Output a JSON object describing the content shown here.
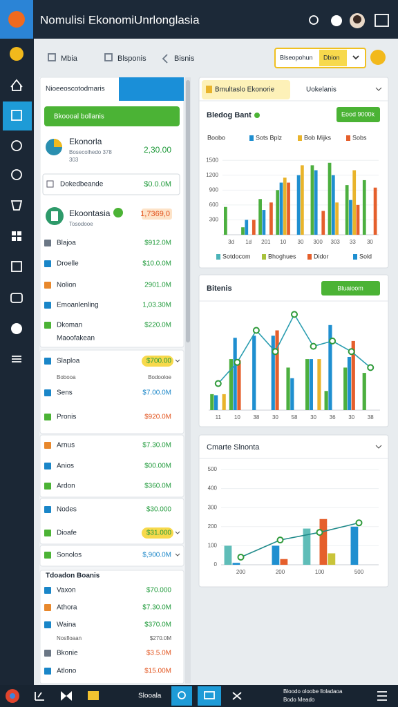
{
  "header": {
    "title": "Nomulisi EkonomiUnrlonglasia"
  },
  "toolbar": {
    "tabs": [
      "Mbia",
      "Blsponis",
      "Bisnis"
    ],
    "account": [
      "Blseopohun",
      "Dbion"
    ]
  },
  "left_panel": {
    "title": "Nioeeoscotodmaris",
    "button": "Bkoooal bollanis",
    "feature": {
      "name": "Ekonorla",
      "sub": "Bosecolhedo 378",
      "sub2": "303",
      "value": "2,30.00"
    },
    "box": {
      "name": "Dokedbeande",
      "value": "$0.0.0M"
    },
    "feature2": {
      "name": "Ekoontasia",
      "sub": "Tosodooe",
      "value": "1,7369,0"
    },
    "cards": [
      [
        {
          "name": "Blajoa",
          "value": "$912.0M"
        },
        {
          "name": "Droelle",
          "value": "$10.0.0M"
        },
        {
          "name": "Nolion",
          "value": "2901.0M"
        },
        {
          "name": "Emoanlenling",
          "value": "1,03.30M"
        },
        {
          "name": "Dkoman",
          "value": "$220.0M"
        },
        {
          "name": "Maoofakean"
        }
      ],
      [
        {
          "name": "Slaploa",
          "value": "$700.00",
          "pill": "#f7d94c",
          "chevron": true
        },
        {
          "name": "Bobooa",
          "value": "Bodooloe",
          "small": true
        },
        {
          "name": "Sens",
          "value": "$7.00.0M",
          "color": "#1a86c8"
        },
        {
          "name": "Pronis",
          "value": "$920.0M",
          "color": "#e2531d"
        }
      ],
      [
        {
          "name": "Arnus",
          "value": "$7.30.0M"
        },
        {
          "name": "Anios",
          "value": "$00.00M"
        },
        {
          "name": "Ardon",
          "value": "$360.0M"
        }
      ],
      [
        {
          "name": "Nodes",
          "value": "$30.000"
        },
        {
          "name": "Dioafe",
          "value": "$31.000",
          "pill": "#f7d94c",
          "chevron": true
        }
      ],
      [
        {
          "name": "Sonolos",
          "value": "$,900.0M",
          "color": "#1a86c8",
          "chevron": true
        }
      ]
    ],
    "section_title": "Tdoadon Boanis",
    "section_rows": [
      {
        "name": "Vaxon",
        "value": "$70.000"
      },
      {
        "name": "Athora",
        "value": "$7.30.0M"
      },
      {
        "name": "Waina",
        "value": "$370.0M"
      },
      {
        "name": "Nosfloaan",
        "value": "$270.0M",
        "small": true
      },
      {
        "name": "Bkonie",
        "value": "$3.5.0M",
        "color": "#e2531d"
      },
      {
        "name": "Atlono",
        "value": "$15.00M",
        "color": "#e2531d"
      }
    ]
  },
  "panels": [
    {
      "tabs": [
        "Bmultaslo Ekonorie",
        "Uokelanis"
      ],
      "title": "Bledog Bant",
      "button": "Eood 9000k",
      "chart": {
        "type": "bar",
        "grid": true,
        "ylim": [
          0,
          1600
        ],
        "yticks": [
          300,
          600,
          900,
          1200,
          1500
        ],
        "categories": [
          "3d",
          "1d",
          "201",
          "10",
          "30",
          "300",
          "303",
          "33",
          "30"
        ],
        "series": [
          {
            "name": "Boobo",
            "color": "#4caf3f",
            "values": [
              560,
              150,
              720,
              900,
              null,
              1400,
              1450,
              1000,
              1100
            ]
          },
          {
            "name": "Sots Bplz",
            "color": "#1f8fd0",
            "values": [
              null,
              300,
              500,
              1050,
              1200,
              1300,
              1200,
              700,
              null
            ]
          },
          {
            "name": "Bob Mijks",
            "color": "#e9b42b",
            "values": [
              null,
              null,
              null,
              1150,
              1400,
              null,
              650,
              1300,
              null
            ]
          },
          {
            "name": "Sobs",
            "color": "#e55f2c",
            "values": [
              null,
              300,
              650,
              1050,
              null,
              480,
              null,
              600,
              950
            ]
          }
        ],
        "legend2": [
          {
            "label": "Sotdocom",
            "color": "#4bb3b8"
          },
          {
            "label": "Bhoghues",
            "color": "#a8c23c"
          },
          {
            "label": "Didor",
            "color": "#e55f2c"
          },
          {
            "label": "Sold",
            "color": "#1f8fd0"
          }
        ]
      }
    },
    {
      "title": "Bitenis",
      "button": "Bluaioom",
      "chart": {
        "type": "bar",
        "grid": false,
        "ylim": [
          0,
          100
        ],
        "categories": [
          "11",
          "10",
          "38",
          "30",
          "58",
          "30",
          "36",
          "30",
          "38"
        ],
        "series": [
          {
            "color": "#4caf3f",
            "values": [
              15,
              48,
              null,
              null,
              40,
              48,
              18,
              40,
              35
            ]
          },
          {
            "color": "#1f8fd0",
            "values": [
              14,
              68,
              70,
              70,
              30,
              48,
              80,
              50,
              null
            ]
          },
          {
            "color": "#e55f2c",
            "values": [
              null,
              47,
              null,
              75,
              null,
              null,
              null,
              65,
              null
            ]
          },
          {
            "color": "#e9b42b",
            "values": [
              15,
              null,
              null,
              null,
              null,
              48,
              null,
              null,
              null
            ]
          },
          {
            "type": "line",
            "color": "#2a9db0",
            "values": [
              25,
              45,
              75,
              55,
              90,
              60,
              65,
              55,
              40
            ]
          }
        ]
      }
    },
    {
      "title": "Cmarte Slnonta",
      "chart": {
        "type": "bar",
        "grid": true,
        "ylim": [
          0,
          500
        ],
        "yticks": [
          0,
          100,
          200,
          300,
          400,
          500
        ],
        "categories": [
          "200",
          "200",
          "100",
          "500"
        ],
        "series": [
          {
            "color": "#5fbdb8",
            "values": [
              100,
              null,
              190,
              null
            ]
          },
          {
            "color": "#1f8fd0",
            "values": [
              10,
              100,
              null,
              200
            ]
          },
          {
            "color": "#e55f2c",
            "values": [
              null,
              30,
              240,
              null
            ]
          },
          {
            "color": "#c9c43a",
            "values": [
              null,
              null,
              60,
              null
            ]
          },
          {
            "type": "line",
            "color": "#1f8a8a",
            "values": [
              40,
              130,
              170,
              220
            ]
          }
        ]
      }
    }
  ],
  "taskbar": {
    "label": "Slooala",
    "status": [
      "Bloodo oloobe lloladaoa",
      "Bodo Meado"
    ]
  }
}
